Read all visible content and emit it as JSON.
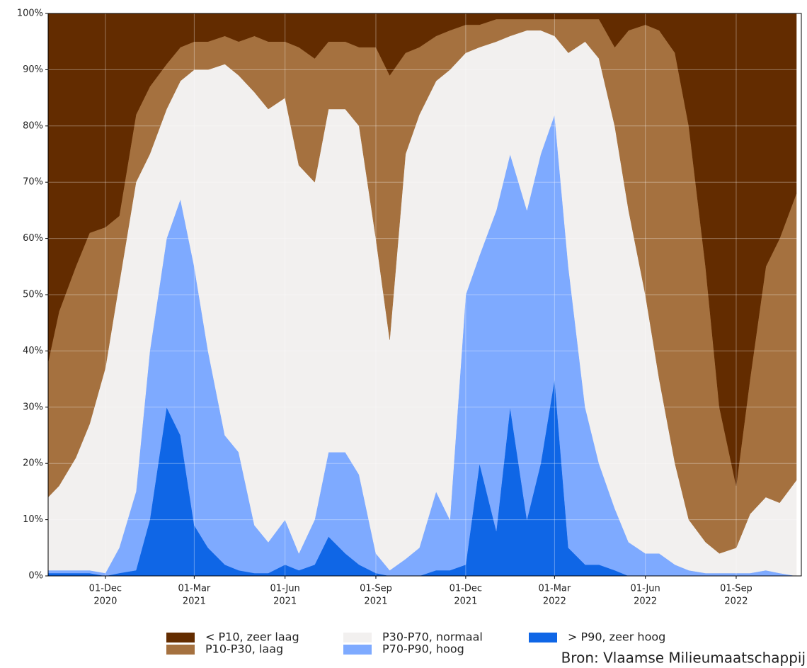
{
  "chart_data": {
    "type": "stacked-area",
    "x": [
      "2020-10-04",
      "2020-10-15",
      "2020-11-01",
      "2020-11-15",
      "2020-12-01",
      "2020-12-15",
      "2021-01-01",
      "2021-01-15",
      "2021-02-01",
      "2021-02-15",
      "2021-03-01",
      "2021-03-15",
      "2021-04-01",
      "2021-04-15",
      "2021-05-01",
      "2021-05-15",
      "2021-06-01",
      "2021-06-15",
      "2021-07-01",
      "2021-07-15",
      "2021-08-01",
      "2021-08-15",
      "2021-09-01",
      "2021-09-15",
      "2021-10-01",
      "2021-10-15",
      "2021-11-01",
      "2021-11-15",
      "2021-12-01",
      "2021-12-15",
      "2022-01-01",
      "2022-01-15",
      "2022-02-01",
      "2022-02-15",
      "2022-03-01",
      "2022-03-15",
      "2022-04-01",
      "2022-04-15",
      "2022-05-01",
      "2022-05-15",
      "2022-06-01",
      "2022-06-15",
      "2022-07-01",
      "2022-07-15",
      "2022-08-01",
      "2022-08-15",
      "2022-09-01",
      "2022-09-15",
      "2022-10-01",
      "2022-10-15",
      "2022-11-01"
    ],
    "series": [
      {
        "name": "> P90, zeer hoog",
        "color": "#0f66e6",
        "values": [
          0.5,
          0.5,
          0.5,
          0.5,
          0,
          0.5,
          1,
          10,
          30,
          25,
          9,
          5,
          2,
          1,
          0.5,
          0.5,
          2,
          1,
          2,
          7,
          4,
          2,
          0.5,
          0,
          0,
          0,
          1,
          1,
          2,
          20,
          8,
          30,
          10,
          20,
          35,
          5,
          2,
          2,
          1,
          0,
          0,
          0,
          0,
          0,
          0,
          0,
          0,
          0,
          0,
          0,
          0
        ]
      },
      {
        "name": "P70-P90, hoog",
        "color": "#7eaaff",
        "values": [
          0.5,
          0.5,
          0.5,
          0.5,
          0.5,
          4.5,
          14,
          30,
          30,
          42,
          46,
          35,
          23,
          21,
          8.5,
          5.5,
          8,
          3,
          8,
          15,
          18,
          16,
          3.5,
          1,
          3,
          5,
          14,
          9,
          48,
          37,
          57,
          45,
          55,
          55,
          47,
          50,
          28,
          18,
          11,
          6,
          4,
          4,
          2,
          1,
          0.5,
          0.5,
          0.5,
          0.5,
          1,
          0.5,
          0
        ]
      },
      {
        "name": "P30-P70, normaal",
        "color": "#f2f0ef",
        "values": [
          13,
          15,
          20,
          26,
          36.5,
          47,
          55,
          35,
          23,
          21,
          35,
          50,
          66,
          67,
          77,
          77,
          75,
          69,
          60,
          61,
          61,
          62,
          56,
          41,
          72,
          77,
          73,
          80,
          43,
          37,
          30,
          21,
          32,
          22,
          14,
          38,
          65,
          72,
          68,
          59,
          46,
          31,
          18,
          9,
          5.5,
          3.5,
          4.5,
          10.5,
          13,
          12.5,
          17
        ]
      },
      {
        "name": "P10-P30, laag",
        "color": "#a5713f",
        "values": [
          24,
          31,
          34,
          34,
          25,
          12,
          12,
          12,
          8,
          6,
          5,
          5,
          5,
          6,
          10,
          12,
          10,
          21,
          22,
          12,
          12,
          14,
          34,
          47,
          18,
          12,
          8,
          7,
          5,
          4,
          4,
          3,
          2,
          2,
          3,
          6,
          4,
          7,
          14,
          32,
          48,
          62,
          73,
          70,
          49,
          26,
          11,
          24,
          41,
          47,
          51
        ]
      },
      {
        "name": "< P10, zeer laag",
        "color": "#632c00",
        "values": [
          62,
          53,
          45,
          39,
          38,
          36,
          18,
          13,
          9,
          6,
          5,
          5,
          4,
          5,
          4,
          5,
          5,
          6,
          8,
          5,
          5,
          6,
          6,
          11,
          7,
          6,
          4,
          3,
          2,
          2,
          1,
          1,
          1,
          1,
          1,
          1,
          1,
          1,
          6,
          3,
          2,
          3,
          7,
          20,
          45,
          70,
          84,
          65,
          45,
          40,
          32
        ]
      }
    ],
    "xlim": [
      "2020-10-04",
      "2022-11-06"
    ],
    "xticks": [
      {
        "value": "2020-12-01",
        "label": [
          "01-Dec",
          "2020"
        ]
      },
      {
        "value": "2021-03-01",
        "label": [
          "01-Mar",
          "2021"
        ]
      },
      {
        "value": "2021-06-01",
        "label": [
          "01-Jun",
          "2021"
        ]
      },
      {
        "value": "2021-09-01",
        "label": [
          "01-Sep",
          "2021"
        ]
      },
      {
        "value": "2021-12-01",
        "label": [
          "01-Dec",
          "2021"
        ]
      },
      {
        "value": "2022-03-01",
        "label": [
          "01-Mar",
          "2022"
        ]
      },
      {
        "value": "2022-06-01",
        "label": [
          "01-Jun",
          "2022"
        ]
      },
      {
        "value": "2022-09-01",
        "label": [
          "01-Sep",
          "2022"
        ]
      }
    ],
    "ylim": [
      0,
      100
    ],
    "yticks": [
      {
        "value": 0,
        "label": "0%"
      },
      {
        "value": 10,
        "label": "10%"
      },
      {
        "value": 20,
        "label": "20%"
      },
      {
        "value": 30,
        "label": "30%"
      },
      {
        "value": 40,
        "label": "40%"
      },
      {
        "value": 50,
        "label": "50%"
      },
      {
        "value": 60,
        "label": "60%"
      },
      {
        "value": 70,
        "label": "70%"
      },
      {
        "value": 80,
        "label": "80%"
      },
      {
        "value": 90,
        "label": "90%"
      },
      {
        "value": 100,
        "label": "100%"
      }
    ],
    "grid": true,
    "source": "Bron: Vlaamse Milieumaatschappij"
  }
}
